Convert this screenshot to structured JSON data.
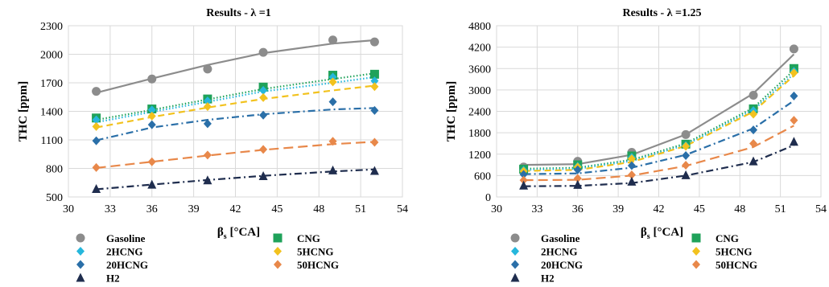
{
  "charts": [
    {
      "title": "Results - λ =1",
      "xlabel": "βs [°CA]",
      "ylabel": "THC [ppm]"
    },
    {
      "title": "Results - λ =1.25",
      "xlabel": "βs [°CA]",
      "ylabel": "THC [ppm]"
    }
  ],
  "chart_data": [
    {
      "type": "scatter",
      "title": "Results - λ =1",
      "xlabel": "βs [°CA]",
      "ylabel": "THC [ppm]",
      "xlim": [
        30,
        54
      ],
      "ylim": [
        500,
        2300
      ],
      "xticks": [
        30,
        33,
        36,
        39,
        42,
        45,
        48,
        51,
        54
      ],
      "yticks": [
        500,
        800,
        1100,
        1400,
        1700,
        2000,
        2300
      ],
      "grid": true,
      "legend_position": "bottom",
      "x": [
        32,
        36,
        40,
        44,
        49,
        52
      ],
      "series": [
        {
          "name": "Gasoline",
          "marker": "circle",
          "color": "#8c8c8c",
          "line": "solid",
          "values": [
            1610,
            1740,
            1845,
            2020,
            2150,
            2130
          ],
          "trend": [
            1595,
            1745,
            1888,
            2012,
            2112,
            2148
          ]
        },
        {
          "name": "CNG",
          "marker": "square",
          "color": "#1fa25a",
          "line": "dotted",
          "values": [
            1330,
            1425,
            1530,
            1655,
            1780,
            1790
          ],
          "trend": [
            1310,
            1415,
            1525,
            1635,
            1740,
            1800
          ]
        },
        {
          "name": "2HCNG",
          "marker": "diamond",
          "color": "#26b7dc",
          "line": "dotted",
          "values": [
            1310,
            1415,
            1510,
            1620,
            1760,
            1720
          ],
          "trend": [
            1285,
            1395,
            1500,
            1610,
            1700,
            1760
          ]
        },
        {
          "name": "5HCNG",
          "marker": "diamond",
          "color": "#f2c21e",
          "line": "dashed",
          "values": [
            1240,
            1350,
            1450,
            1545,
            1710,
            1660
          ],
          "trend": [
            1230,
            1340,
            1440,
            1530,
            1620,
            1670
          ]
        },
        {
          "name": "20HCNG",
          "marker": "diamond",
          "color": "#2a6fa8",
          "line": "dashdot",
          "values": [
            1090,
            1260,
            1270,
            1360,
            1500,
            1410
          ],
          "trend": [
            1095,
            1230,
            1310,
            1370,
            1420,
            1435
          ]
        },
        {
          "name": "50HCNG",
          "marker": "diamond",
          "color": "#e8884a",
          "line": "longdash",
          "values": [
            810,
            870,
            940,
            1000,
            1085,
            1075
          ],
          "trend": [
            805,
            870,
            935,
            995,
            1055,
            1080
          ]
        },
        {
          "name": "H2",
          "marker": "triangle",
          "color": "#1f2d4e",
          "line": "dashdot",
          "values": [
            585,
            630,
            675,
            720,
            780,
            775
          ],
          "trend": [
            580,
            630,
            678,
            722,
            768,
            790
          ]
        }
      ]
    },
    {
      "type": "scatter",
      "title": "Results - λ =1.25",
      "xlabel": "βs [°CA]",
      "ylabel": "THC [ppm]",
      "xlim": [
        30,
        54
      ],
      "ylim": [
        0,
        4800
      ],
      "xticks": [
        30,
        33,
        36,
        39,
        42,
        45,
        48,
        51,
        54
      ],
      "yticks": [
        0,
        600,
        1200,
        1800,
        2400,
        3000,
        3600,
        4200,
        4800
      ],
      "grid": true,
      "legend_position": "bottom",
      "x": [
        32,
        36,
        40,
        44,
        49,
        52
      ],
      "series": [
        {
          "name": "Gasoline",
          "marker": "circle",
          "color": "#8c8c8c",
          "line": "solid",
          "values": [
            840,
            1000,
            1250,
            1750,
            2850,
            4150
          ],
          "trend": [
            900,
            920,
            1180,
            1750,
            2900,
            4000
          ]
        },
        {
          "name": "CNG",
          "marker": "square",
          "color": "#1fa25a",
          "line": "dotted",
          "values": [
            780,
            900,
            1150,
            1480,
            2470,
            3600
          ],
          "trend": [
            790,
            820,
            1040,
            1500,
            2500,
            3550
          ]
        },
        {
          "name": "2HCNG",
          "marker": "diamond",
          "color": "#26b7dc",
          "line": "dotted",
          "values": [
            750,
            860,
            1110,
            1440,
            2420,
            3520
          ],
          "trend": [
            760,
            790,
            1010,
            1460,
            2440,
            3450
          ]
        },
        {
          "name": "5HCNG",
          "marker": "diamond",
          "color": "#f2c21e",
          "line": "dashed",
          "values": [
            720,
            840,
            1070,
            1420,
            2320,
            3480
          ],
          "trend": [
            730,
            760,
            980,
            1430,
            2390,
            3400
          ]
        },
        {
          "name": "20HCNG",
          "marker": "diamond",
          "color": "#2a6fa8",
          "line": "dashdot",
          "values": [
            630,
            760,
            880,
            1160,
            1880,
            2830
          ],
          "trend": [
            640,
            660,
            820,
            1180,
            1920,
            2700
          ]
        },
        {
          "name": "50HCNG",
          "marker": "diamond",
          "color": "#e8884a",
          "line": "longdash",
          "values": [
            470,
            520,
            620,
            890,
            1500,
            2150
          ],
          "trend": [
            470,
            480,
            600,
            870,
            1400,
            2000
          ]
        },
        {
          "name": "H2",
          "marker": "triangle",
          "color": "#1f2d4e",
          "line": "dashdot",
          "values": [
            320,
            340,
            430,
            610,
            1000,
            1550
          ],
          "trend": [
            300,
            310,
            390,
            600,
            980,
            1450
          ]
        }
      ]
    }
  ],
  "legend_layout": [
    [
      "Gasoline",
      "CNG"
    ],
    [
      "2HCNG",
      "5HCNG"
    ],
    [
      "20HCNG",
      "50HCNG"
    ],
    [
      "H2"
    ]
  ]
}
